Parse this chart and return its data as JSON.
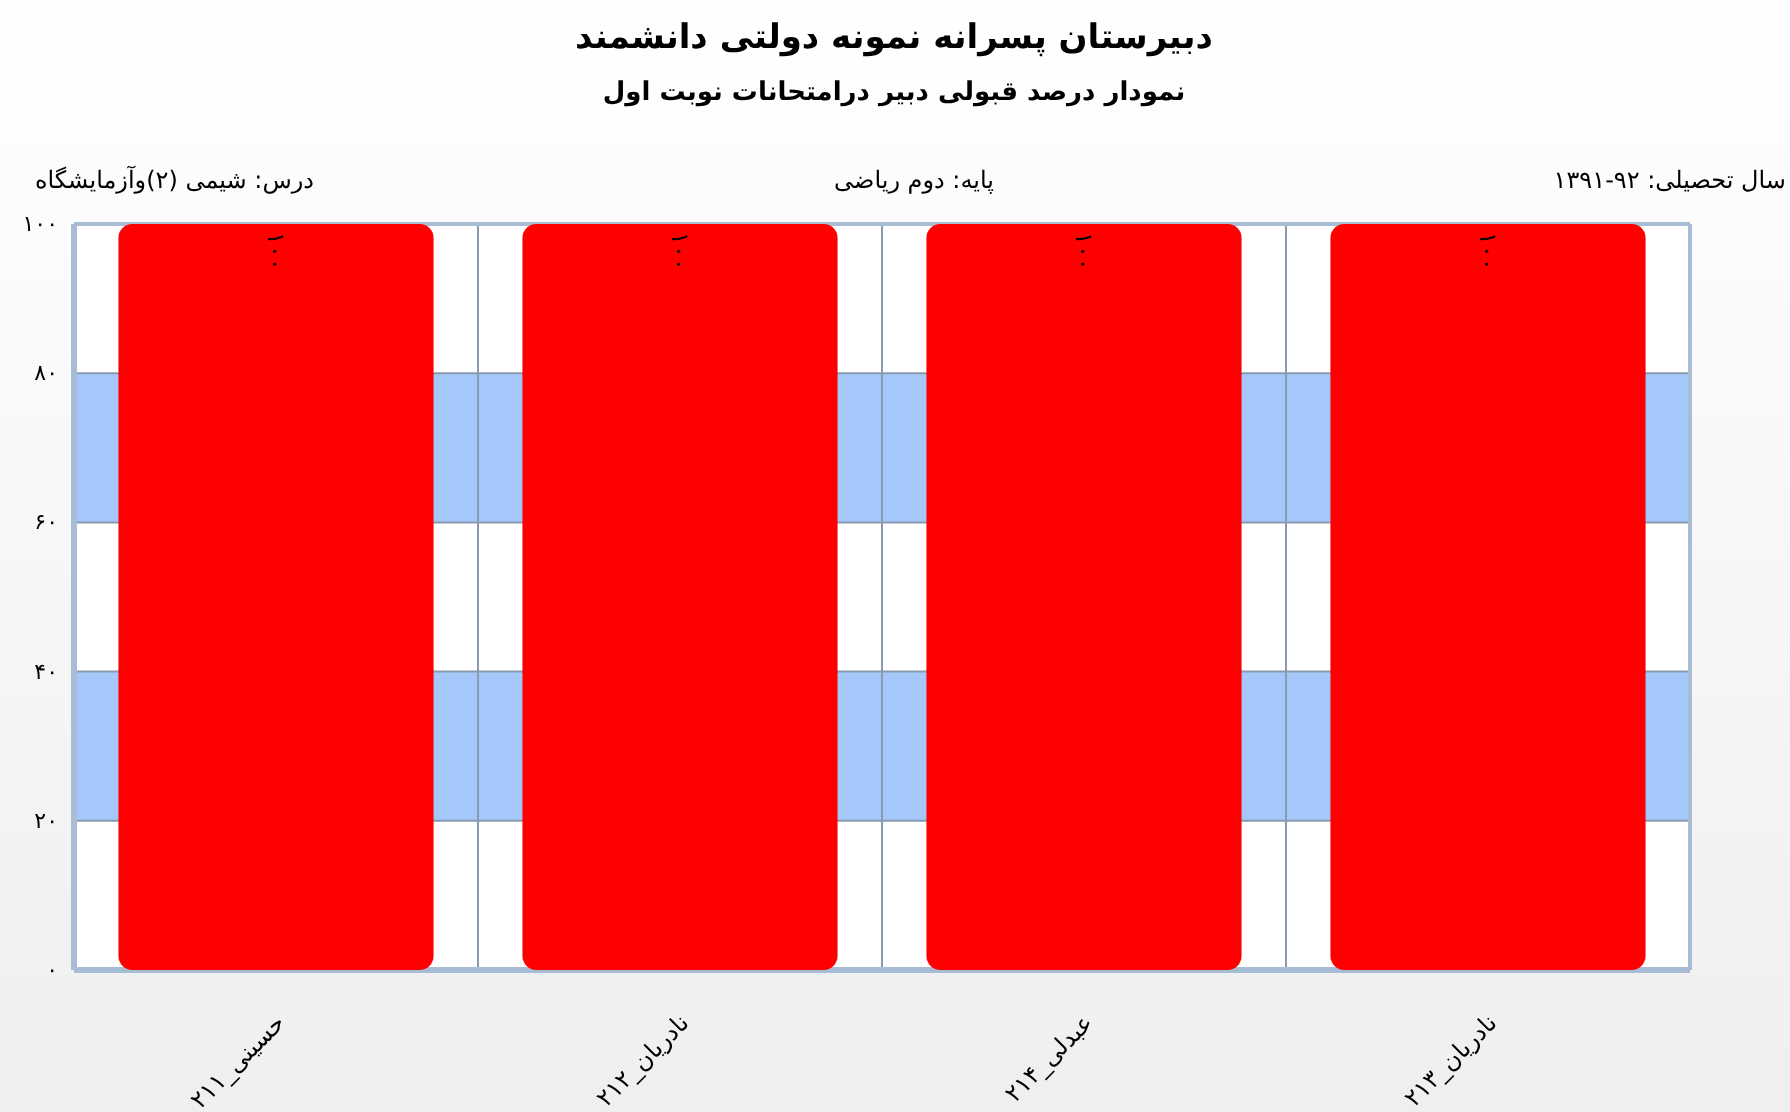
{
  "chart_data": {
    "type": "bar",
    "title": "دبیرستان پسرانه نمونه دولتی دانشمند",
    "subtitle": "نمودار درصد قبولی دبیر درامتحانات نوبت اول",
    "annotations": [
      "درس: شیمی  (۲)وآزمایشگاه",
      "پایه: دوم ریاضی",
      "سال تحصیلی: ۹۲-۱۳۹۱"
    ],
    "categories": [
      "حسینی_۲۱۱",
      "نادریان_۲۱۲",
      "عبدلی_۲۱۴",
      "نادریان_۲۱۳"
    ],
    "values": [
      100,
      100,
      100,
      100
    ],
    "color": "#ff0000",
    "value_labels": [
      "۱۰۰",
      "۱۰۰",
      "۱۰۰",
      "۱۰۰"
    ],
    "ylim": [
      0,
      100
    ],
    "yticks": [
      {
        "value": 0,
        "label": "۰"
      },
      {
        "value": 20,
        "label": "۲۰"
      },
      {
        "value": 40,
        "label": "۴۰"
      },
      {
        "value": 60,
        "label": "۶۰"
      },
      {
        "value": 80,
        "label": "۸۰"
      },
      {
        "value": 100,
        "label": "۱۰۰"
      }
    ],
    "bands": [
      {
        "axis": "y",
        "from": 20,
        "to": 40,
        "color": "#a4c8fa"
      },
      {
        "axis": "y",
        "from": 60,
        "to": 80,
        "color": "#a4c8fa"
      }
    ],
    "grid": true
  }
}
